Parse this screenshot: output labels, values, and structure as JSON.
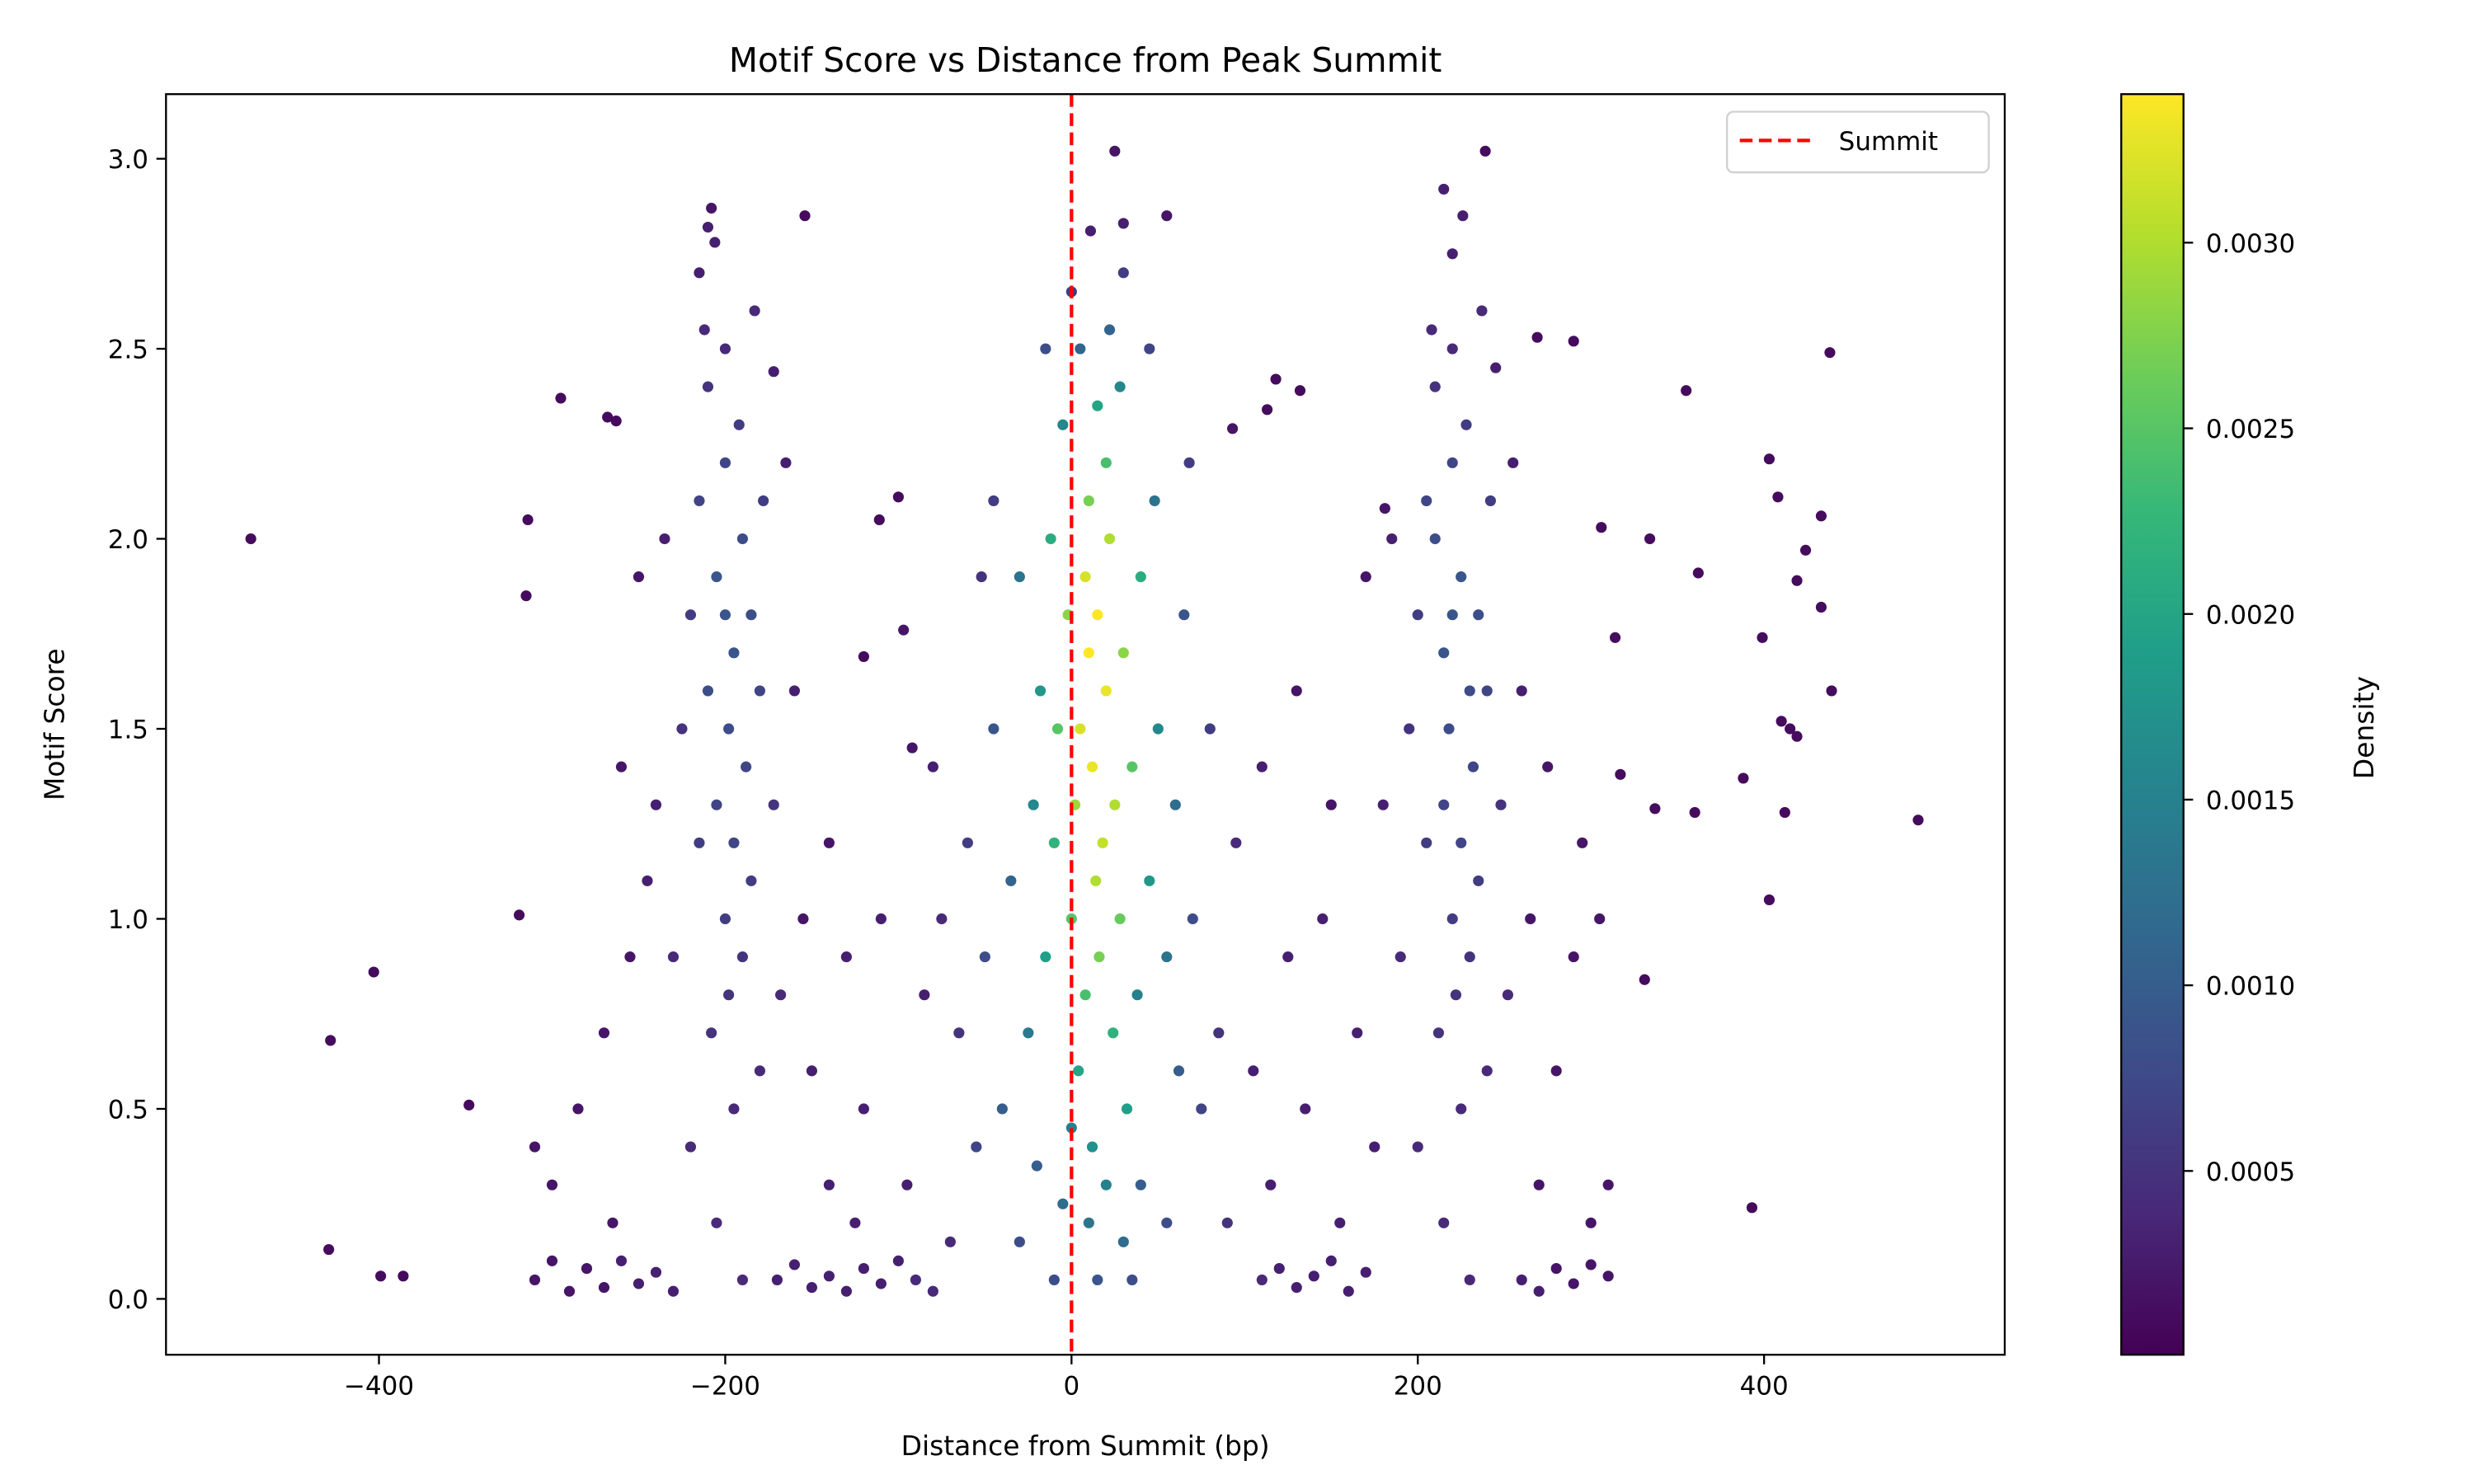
{
  "chart_data": {
    "type": "scatter",
    "title": "Motif Score vs Distance from Peak Summit",
    "xlabel": "Distance from Summit (bp)",
    "ylabel": "Motif Score",
    "xlim": [
      -523,
      539
    ],
    "ylim": [
      -0.147,
      3.17
    ],
    "xticks": [
      -400,
      -200,
      0,
      200,
      400
    ],
    "xtick_labels": [
      "−400",
      "−200",
      "0",
      "200",
      "400"
    ],
    "yticks": [
      0.0,
      0.5,
      1.0,
      1.5,
      2.0,
      2.5,
      3.0
    ],
    "ytick_labels": [
      "0.0",
      "0.5",
      "1.0",
      "1.5",
      "2.0",
      "2.5",
      "3.0"
    ],
    "grid": false,
    "colormap": "viridis",
    "colorbar": {
      "label": "Density",
      "range": [
        5e-06,
        0.0034
      ],
      "ticks": [
        0.0005,
        0.001,
        0.0015,
        0.002,
        0.0025,
        0.003
      ],
      "tick_labels": [
        "0.0005",
        "0.0010",
        "0.0015",
        "0.0020",
        "0.0025",
        "0.0030"
      ]
    },
    "reference_line": {
      "x": 0,
      "label": "Summit",
      "color": "#ff0000",
      "style": "dashed"
    },
    "legend": {
      "position": "top-right",
      "entries": [
        "Summit"
      ]
    },
    "point_fields": [
      "distance_bp",
      "motif_score",
      "density"
    ],
    "points": [
      [
        -474,
        2.0,
        0.0001
      ],
      [
        -428,
        0.68,
        0.0001
      ],
      [
        -429,
        0.13,
        0.0001
      ],
      [
        -403,
        0.86,
        0.0001
      ],
      [
        -399,
        0.06,
        0.0001
      ],
      [
        -386,
        0.06,
        0.0001
      ],
      [
        -348,
        0.51,
        0.0001
      ],
      [
        -319,
        1.01,
        0.0001
      ],
      [
        -314,
        2.05,
        0.0001
      ],
      [
        -315,
        1.85,
        0.0001
      ],
      [
        -295,
        2.37,
        0.0001
      ],
      [
        -268,
        2.32,
        0.0001
      ],
      [
        -263,
        2.31,
        0.0001
      ],
      [
        438,
        2.49,
        0.0001
      ],
      [
        355,
        2.39,
        0.0001
      ],
      [
        403,
        2.21,
        0.0001
      ],
      [
        408,
        2.11,
        0.0001
      ],
      [
        433,
        2.06,
        0.0001
      ],
      [
        424,
        1.97,
        0.0001
      ],
      [
        362,
        1.91,
        0.0001
      ],
      [
        419,
        1.89,
        0.0001
      ],
      [
        433,
        1.82,
        0.0001
      ],
      [
        399,
        1.74,
        0.0001
      ],
      [
        439,
        1.6,
        0.0001
      ],
      [
        410,
        1.52,
        0.0001
      ],
      [
        415,
        1.5,
        0.0001
      ],
      [
        419,
        1.48,
        0.0001
      ],
      [
        388,
        1.37,
        0.0001
      ],
      [
        412,
        1.28,
        0.0001
      ],
      [
        489,
        1.26,
        0.0001
      ],
      [
        403,
        1.05,
        0.0001
      ],
      [
        393,
        0.24,
        0.0001
      ],
      [
        331,
        0.84,
        0.0001
      ],
      [
        334,
        2.0,
        0.0001
      ],
      [
        337,
        1.29,
        0.0001
      ],
      [
        360,
        1.28,
        0.0001
      ],
      [
        306,
        2.03,
        0.0001
      ],
      [
        314,
        1.74,
        0.0001
      ],
      [
        317,
        1.38,
        0.0001
      ],
      [
        25,
        3.02,
        0.0002
      ],
      [
        239,
        3.02,
        0.0001
      ],
      [
        11,
        2.81,
        0.0003
      ],
      [
        30,
        2.83,
        0.0003
      ],
      [
        55,
        2.85,
        0.0002
      ],
      [
        -208,
        2.87,
        0.0002
      ],
      [
        -154,
        2.85,
        0.0001
      ],
      [
        93,
        2.29,
        0.0002
      ],
      [
        118,
        2.42,
        0.0001
      ],
      [
        132,
        2.39,
        0.0001
      ],
      [
        113,
        2.34,
        0.0001
      ],
      [
        -100,
        2.11,
        0.0001
      ],
      [
        -111,
        2.05,
        0.0001
      ],
      [
        -97,
        1.76,
        0.0002
      ],
      [
        -120,
        1.69,
        0.0001
      ],
      [
        -92,
        1.45,
        0.0002
      ],
      [
        181,
        2.08,
        0.0002
      ],
      [
        269,
        2.53,
        0.0001
      ],
      [
        290,
        2.52,
        0.0001
      ],
      [
        10,
        1.7,
        0.0034
      ],
      [
        15,
        1.8,
        0.0034
      ],
      [
        20,
        1.6,
        0.0033
      ],
      [
        5,
        1.5,
        0.0032
      ],
      [
        12,
        1.4,
        0.0033
      ],
      [
        18,
        1.2,
        0.0031
      ],
      [
        8,
        1.9,
        0.0032
      ],
      [
        22,
        2.0,
        0.003
      ],
      [
        14,
        1.1,
        0.003
      ],
      [
        25,
        1.3,
        0.003
      ],
      [
        2,
        1.3,
        0.0029
      ],
      [
        30,
        1.7,
        0.0028
      ],
      [
        -2,
        1.8,
        0.0028
      ],
      [
        16,
        0.9,
        0.0027
      ],
      [
        10,
        2.1,
        0.0027
      ],
      [
        28,
        1.0,
        0.0026
      ],
      [
        0,
        1.0,
        0.0025
      ],
      [
        35,
        1.4,
        0.0025
      ],
      [
        -8,
        1.5,
        0.0025
      ],
      [
        20,
        2.2,
        0.0024
      ],
      [
        8,
        0.8,
        0.0024
      ],
      [
        24,
        0.7,
        0.0022
      ],
      [
        -10,
        1.2,
        0.0022
      ],
      [
        40,
        1.9,
        0.0021
      ],
      [
        -12,
        2.0,
        0.0021
      ],
      [
        15,
        2.35,
        0.002
      ],
      [
        4,
        0.6,
        0.002
      ],
      [
        32,
        0.5,
        0.0019
      ],
      [
        -15,
        0.9,
        0.0019
      ],
      [
        45,
        1.1,
        0.0018
      ],
      [
        -18,
        1.6,
        0.0018
      ],
      [
        12,
        0.4,
        0.0017
      ],
      [
        28,
        2.4,
        0.0016
      ],
      [
        -5,
        2.3,
        0.0016
      ],
      [
        50,
        1.5,
        0.0016
      ],
      [
        -22,
        1.3,
        0.0016
      ],
      [
        20,
        0.3,
        0.0015
      ],
      [
        0,
        0.45,
        0.0015
      ],
      [
        38,
        0.8,
        0.0015
      ],
      [
        -25,
        0.7,
        0.0014
      ],
      [
        55,
        0.9,
        0.0013
      ],
      [
        -30,
        1.9,
        0.0013
      ],
      [
        48,
        2.1,
        0.0013
      ],
      [
        10,
        0.2,
        0.0013
      ],
      [
        30,
        0.15,
        0.0012
      ],
      [
        -5,
        0.25,
        0.0012
      ],
      [
        60,
        1.3,
        0.0012
      ],
      [
        -35,
        1.1,
        0.0011
      ],
      [
        22,
        2.55,
        0.0011
      ],
      [
        5,
        2.5,
        0.0011
      ],
      [
        62,
        0.6,
        0.001
      ],
      [
        -40,
        0.5,
        0.001
      ],
      [
        40,
        0.3,
        0.001
      ],
      [
        -20,
        0.35,
        0.001
      ],
      [
        65,
        1.8,
        0.0009
      ],
      [
        -45,
        1.5,
        0.0009
      ],
      [
        70,
        1.0,
        0.0008
      ],
      [
        -50,
        0.9,
        0.0008
      ],
      [
        15,
        0.05,
        0.0009
      ],
      [
        35,
        0.05,
        0.0008
      ],
      [
        -10,
        0.05,
        0.0008
      ],
      [
        55,
        0.2,
        0.0008
      ],
      [
        -30,
        0.15,
        0.0008
      ],
      [
        75,
        0.5,
        0.0007
      ],
      [
        -55,
        0.4,
        0.0007
      ],
      [
        80,
        1.5,
        0.0006
      ],
      [
        -60,
        1.2,
        0.0006
      ],
      [
        85,
        0.7,
        0.0005
      ],
      [
        -65,
        0.7,
        0.0005
      ],
      [
        45,
        2.5,
        0.0007
      ],
      [
        -15,
        2.5,
        0.0008
      ],
      [
        30,
        2.7,
        0.0006
      ],
      [
        0,
        2.65,
        0.0006
      ],
      [
        -45,
        2.1,
        0.0006
      ],
      [
        68,
        2.2,
        0.0006
      ],
      [
        -52,
        1.9,
        0.0005
      ],
      [
        90,
        0.2,
        0.0005
      ],
      [
        -70,
        0.15,
        0.0004
      ],
      [
        95,
        1.2,
        0.0004
      ],
      [
        -75,
        1.0,
        0.0004
      ],
      [
        -200,
        1.8,
        0.0009
      ],
      [
        -195,
        1.7,
        0.0009
      ],
      [
        -205,
        1.9,
        0.0009
      ],
      [
        -190,
        2.0,
        0.0008
      ],
      [
        -210,
        1.6,
        0.0008
      ],
      [
        -198,
        1.5,
        0.0008
      ],
      [
        -185,
        1.8,
        0.0008
      ],
      [
        -200,
        2.2,
        0.0007
      ],
      [
        -215,
        2.1,
        0.0007
      ],
      [
        -188,
        1.4,
        0.0007
      ],
      [
        -205,
        1.3,
        0.0007
      ],
      [
        -195,
        1.2,
        0.0007
      ],
      [
        -180,
        1.6,
        0.0007
      ],
      [
        -220,
        1.8,
        0.0006
      ],
      [
        -192,
        2.3,
        0.0006
      ],
      [
        -210,
        2.4,
        0.0005
      ],
      [
        -200,
        1.0,
        0.0006
      ],
      [
        -185,
        1.1,
        0.0006
      ],
      [
        -215,
        1.2,
        0.0006
      ],
      [
        -178,
        2.1,
        0.0006
      ],
      [
        -198,
        0.8,
        0.0005
      ],
      [
        -190,
        0.9,
        0.0005
      ],
      [
        -208,
        0.7,
        0.0005
      ],
      [
        -225,
        1.5,
        0.0005
      ],
      [
        -172,
        1.3,
        0.0005
      ],
      [
        -200,
        2.5,
        0.0004
      ],
      [
        -183,
        2.6,
        0.0004
      ],
      [
        -212,
        2.55,
        0.0004
      ],
      [
        -195,
        0.5,
        0.0004
      ],
      [
        -180,
        0.6,
        0.0004
      ],
      [
        -220,
        0.4,
        0.0004
      ],
      [
        -205,
        0.2,
        0.0004
      ],
      [
        -190,
        0.05,
        0.0004
      ],
      [
        -230,
        0.9,
        0.0004
      ],
      [
        -168,
        0.8,
        0.0004
      ],
      [
        -235,
        2.0,
        0.0003
      ],
      [
        -165,
        2.2,
        0.0003
      ],
      [
        -240,
        1.3,
        0.0003
      ],
      [
        -160,
        1.6,
        0.0003
      ],
      [
        -206,
        2.78,
        0.0003
      ],
      [
        -210,
        2.82,
        0.0003
      ],
      [
        -215,
        2.7,
        0.0003
      ],
      [
        -172,
        2.44,
        0.0003
      ],
      [
        -250,
        1.9,
        0.0002
      ],
      [
        -155,
        1.0,
        0.0002
      ],
      [
        220,
        1.8,
        0.0009
      ],
      [
        215,
        1.7,
        0.0009
      ],
      [
        225,
        1.9,
        0.0009
      ],
      [
        210,
        2.0,
        0.0008
      ],
      [
        230,
        1.6,
        0.0008
      ],
      [
        218,
        1.5,
        0.0008
      ],
      [
        235,
        1.8,
        0.0008
      ],
      [
        220,
        2.2,
        0.0007
      ],
      [
        205,
        2.1,
        0.0007
      ],
      [
        232,
        1.4,
        0.0007
      ],
      [
        215,
        1.3,
        0.0007
      ],
      [
        225,
        1.2,
        0.0007
      ],
      [
        240,
        1.6,
        0.0007
      ],
      [
        200,
        1.8,
        0.0006
      ],
      [
        228,
        2.3,
        0.0006
      ],
      [
        210,
        2.4,
        0.0005
      ],
      [
        220,
        1.0,
        0.0006
      ],
      [
        235,
        1.1,
        0.0006
      ],
      [
        205,
        1.2,
        0.0006
      ],
      [
        242,
        2.1,
        0.0006
      ],
      [
        222,
        0.8,
        0.0005
      ],
      [
        230,
        0.9,
        0.0005
      ],
      [
        212,
        0.7,
        0.0005
      ],
      [
        195,
        1.5,
        0.0005
      ],
      [
        248,
        1.3,
        0.0005
      ],
      [
        220,
        2.5,
        0.0004
      ],
      [
        237,
        2.6,
        0.0004
      ],
      [
        208,
        2.55,
        0.0004
      ],
      [
        225,
        0.5,
        0.0004
      ],
      [
        240,
        0.6,
        0.0004
      ],
      [
        200,
        0.4,
        0.0004
      ],
      [
        215,
        0.2,
        0.0004
      ],
      [
        230,
        0.05,
        0.0004
      ],
      [
        190,
        0.9,
        0.0004
      ],
      [
        252,
        0.8,
        0.0004
      ],
      [
        185,
        2.0,
        0.0003
      ],
      [
        255,
        2.2,
        0.0003
      ],
      [
        180,
        1.3,
        0.0003
      ],
      [
        260,
        1.6,
        0.0003
      ],
      [
        220,
        2.75,
        0.0003
      ],
      [
        226,
        2.85,
        0.0003
      ],
      [
        215,
        2.92,
        0.0003
      ],
      [
        245,
        2.45,
        0.0003
      ],
      [
        170,
        1.9,
        0.0002
      ],
      [
        265,
        1.0,
        0.0002
      ],
      [
        -310,
        0.05,
        0.0002
      ],
      [
        -300,
        0.1,
        0.0002
      ],
      [
        -290,
        0.02,
        0.0002
      ],
      [
        -280,
        0.08,
        0.0002
      ],
      [
        -270,
        0.03,
        0.0002
      ],
      [
        -260,
        0.1,
        0.0003
      ],
      [
        -250,
        0.04,
        0.0003
      ],
      [
        -240,
        0.07,
        0.0003
      ],
      [
        -230,
        0.02,
        0.0003
      ],
      [
        -170,
        0.05,
        0.0003
      ],
      [
        -160,
        0.09,
        0.0003
      ],
      [
        -150,
        0.03,
        0.0003
      ],
      [
        -140,
        0.06,
        0.0003
      ],
      [
        -130,
        0.02,
        0.0003
      ],
      [
        -120,
        0.08,
        0.0003
      ],
      [
        -110,
        0.04,
        0.0003
      ],
      [
        -100,
        0.1,
        0.0003
      ],
      [
        -90,
        0.05,
        0.0004
      ],
      [
        -80,
        0.02,
        0.0004
      ],
      [
        110,
        0.05,
        0.0004
      ],
      [
        120,
        0.08,
        0.0003
      ],
      [
        130,
        0.03,
        0.0003
      ],
      [
        140,
        0.06,
        0.0003
      ],
      [
        150,
        0.1,
        0.0003
      ],
      [
        160,
        0.02,
        0.0003
      ],
      [
        170,
        0.07,
        0.0003
      ],
      [
        260,
        0.05,
        0.0003
      ],
      [
        270,
        0.02,
        0.0003
      ],
      [
        280,
        0.08,
        0.0002
      ],
      [
        290,
        0.04,
        0.0002
      ],
      [
        300,
        0.09,
        0.0002
      ],
      [
        310,
        0.06,
        0.0002
      ],
      [
        -310,
        0.4,
        0.0002
      ],
      [
        -300,
        0.3,
        0.0002
      ],
      [
        -285,
        0.5,
        0.0002
      ],
      [
        -270,
        0.7,
        0.0002
      ],
      [
        -260,
        1.4,
        0.0002
      ],
      [
        -255,
        0.9,
        0.0002
      ],
      [
        -245,
        1.1,
        0.0003
      ],
      [
        -265,
        0.2,
        0.0002
      ],
      [
        -150,
        0.6,
        0.0003
      ],
      [
        -140,
        0.3,
        0.0003
      ],
      [
        -130,
        0.9,
        0.0003
      ],
      [
        -120,
        0.5,
        0.0003
      ],
      [
        -110,
        1.0,
        0.0003
      ],
      [
        -95,
        0.3,
        0.0003
      ],
      [
        -85,
        0.8,
        0.0003
      ],
      [
        -80,
        1.4,
        0.0003
      ],
      [
        -140,
        1.2,
        0.0002
      ],
      [
        -125,
        0.2,
        0.0003
      ],
      [
        105,
        0.6,
        0.0003
      ],
      [
        115,
        0.3,
        0.0003
      ],
      [
        125,
        0.9,
        0.0003
      ],
      [
        135,
        0.5,
        0.0003
      ],
      [
        145,
        1.0,
        0.0003
      ],
      [
        155,
        0.2,
        0.0003
      ],
      [
        165,
        0.7,
        0.0003
      ],
      [
        175,
        0.4,
        0.0003
      ],
      [
        110,
        1.4,
        0.0003
      ],
      [
        130,
        1.6,
        0.0002
      ],
      [
        150,
        1.3,
        0.0002
      ],
      [
        270,
        0.3,
        0.0002
      ],
      [
        280,
        0.6,
        0.0002
      ],
      [
        290,
        0.9,
        0.0002
      ],
      [
        300,
        0.2,
        0.0002
      ],
      [
        310,
        0.3,
        0.0002
      ],
      [
        275,
        1.4,
        0.0002
      ],
      [
        295,
        1.2,
        0.0002
      ],
      [
        305,
        1.0,
        0.0002
      ]
    ]
  }
}
